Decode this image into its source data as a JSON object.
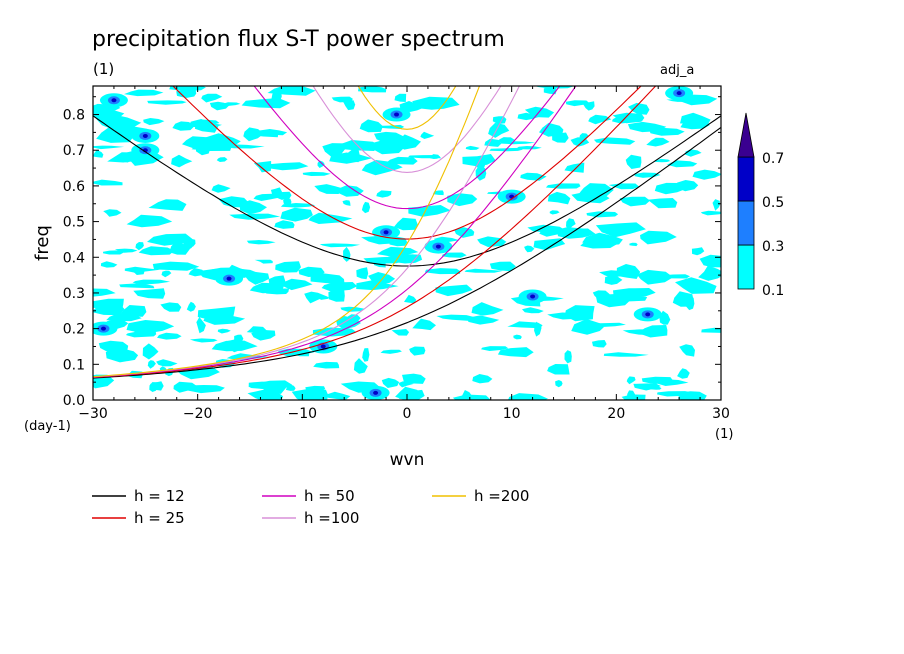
{
  "chart_data": {
    "type": "heatmap",
    "title": "precipitation flux S-T power spectrum",
    "units_label": "(1)",
    "case_label": "adj_a",
    "xlabel": "wvn",
    "ylabel": "freq",
    "x_units": "(1)",
    "y_units": "(day-1)",
    "xlim": [
      -30,
      30
    ],
    "ylim": [
      0,
      0.88
    ],
    "xticks": [
      -30,
      -20,
      -10,
      0,
      10,
      20,
      30
    ],
    "yticks": [
      0.0,
      0.1,
      0.2,
      0.3,
      0.4,
      0.5,
      0.6,
      0.7,
      0.8
    ],
    "colorbar": {
      "levels": [
        0.1,
        0.3,
        0.5,
        0.7
      ],
      "labels": [
        "0.1",
        "0.3",
        "0.5",
        "0.7"
      ],
      "colors": [
        "#00ffff",
        "#1e7fff",
        "#0000c8",
        "#3a0090"
      ]
    },
    "dispersion_curves": {
      "legend": [
        {
          "label": "h = 12",
          "color": "#000000"
        },
        {
          "label": "h = 25",
          "color": "#e00000"
        },
        {
          "label": "h = 50",
          "color": "#d000c0"
        },
        {
          "label": "h =100",
          "color": "#d890d8"
        },
        {
          "label": "h =200",
          "color": "#f0c000"
        }
      ]
    },
    "field_summary": "patchy noise-like power mostly between 0.1 and 0.3, scattered small maxima 0.3-0.7 near wvn -28, -25, -17, -3, 26"
  }
}
